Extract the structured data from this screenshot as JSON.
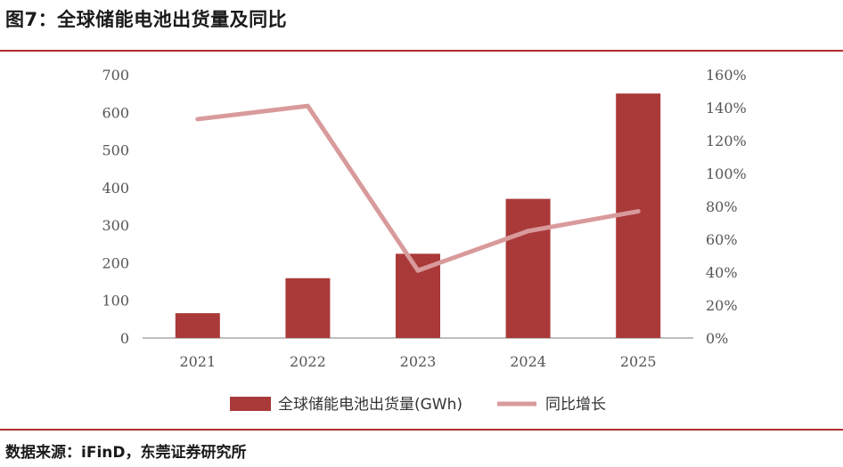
{
  "header": {
    "title": "图7：全球储能电池出货量及同比"
  },
  "footer": {
    "source": "数据来源：iFinD，东莞证券研究所"
  },
  "colors": {
    "bar": "#a93a39",
    "line": "#d99a9c",
    "rule": "#b22b2b",
    "axis": "#999999"
  },
  "chart_data": {
    "type": "bar",
    "title": "",
    "categories": [
      "2021",
      "2022",
      "2023",
      "2024",
      "2025"
    ],
    "ylim": [
      0,
      700
    ],
    "yticks": [
      "0",
      "100",
      "200",
      "300",
      "400",
      "500",
      "600",
      "700"
    ],
    "y2lim": [
      0,
      160
    ],
    "y2ticks": [
      "0%",
      "20%",
      "40%",
      "60%",
      "80%",
      "100%",
      "120%",
      "140%",
      "160%"
    ],
    "grid": false,
    "legend": "bottom",
    "series": [
      {
        "name": "全球储能电池出货量(GWh)",
        "type": "bar",
        "axis": "left",
        "values": [
          66,
          159,
          224,
          370,
          650
        ]
      },
      {
        "name": "同比增长",
        "type": "line",
        "axis": "right",
        "values": [
          133,
          141,
          41,
          65,
          77
        ]
      }
    ]
  }
}
